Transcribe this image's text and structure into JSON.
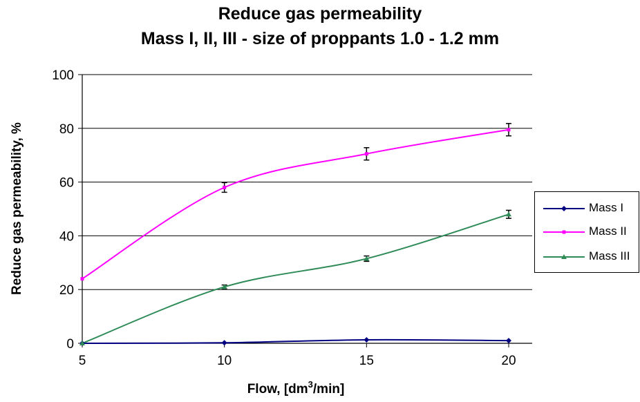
{
  "chart_data": {
    "type": "line",
    "title": "Reduce gas permeability",
    "subtitle": "Mass I, II, III - size of proppants 1.0 - 1.2 mm",
    "xlabel": "Flow, [dm3/min]",
    "xlabel_main": "Flow, [dm",
    "xlabel_sup": "3",
    "xlabel_tail": "/min]",
    "ylabel": "Reduce gas permeability, %",
    "x": [
      5,
      10,
      15,
      20
    ],
    "xlim": [
      5,
      20
    ],
    "ylim": [
      0,
      100
    ],
    "x_ticks": [
      "5",
      "10",
      "15",
      "20"
    ],
    "y_ticks": [
      "0",
      "20",
      "40",
      "60",
      "80",
      "100"
    ],
    "grid": "horizontal",
    "legend_position": "right",
    "series": [
      {
        "name": "Mass I",
        "color": "#000080",
        "marker": "diamond",
        "values": [
          0,
          0.2,
          1.3,
          1.0
        ],
        "errors": [
          0,
          0,
          0,
          0
        ]
      },
      {
        "name": "Mass II",
        "color": "#ff00ff",
        "marker": "square",
        "values": [
          24,
          58,
          70.5,
          79.5
        ],
        "errors": [
          0,
          1.8,
          2.3,
          2.3
        ]
      },
      {
        "name": "Mass III",
        "color": "#2e8b57",
        "marker": "triangle",
        "values": [
          0,
          21,
          31.5,
          48
        ],
        "errors": [
          0,
          0.7,
          1.0,
          1.5
        ]
      }
    ]
  }
}
